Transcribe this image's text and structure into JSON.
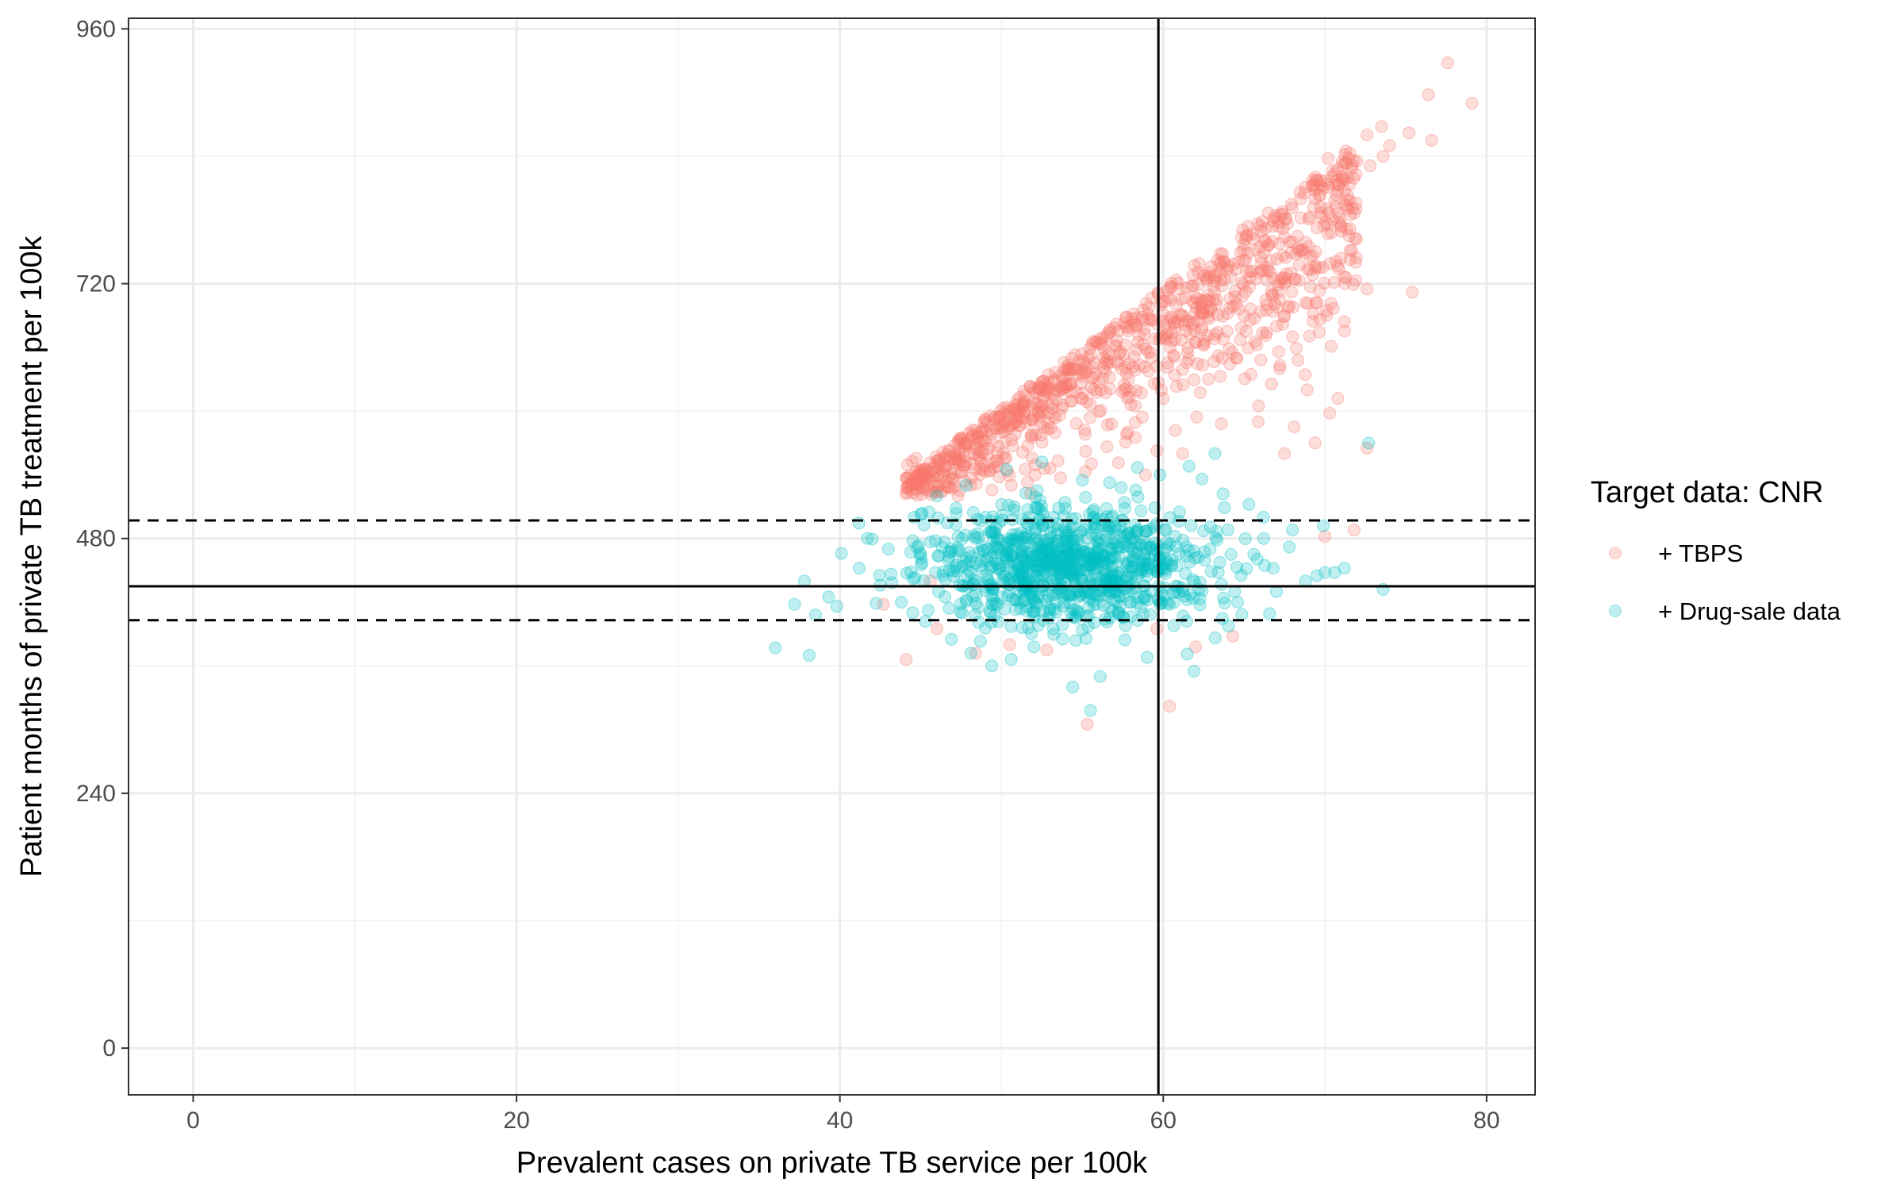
{
  "chart_data": {
    "type": "scatter",
    "xlabel": "Prevalent cases on private TB service per 100k",
    "ylabel": "Patient months of private TB treatment per 100k",
    "xlim": [
      -4,
      83
    ],
    "ylim": [
      -44,
      970
    ],
    "x_ticks": [
      0,
      20,
      40,
      60,
      80
    ],
    "y_ticks": [
      0,
      240,
      480,
      720,
      960
    ],
    "x_minor": [
      10,
      30,
      50,
      70
    ],
    "y_minor": [
      120,
      360,
      600,
      840
    ],
    "grid": true,
    "theme": "bw",
    "point_alpha": 0.25,
    "legend": {
      "title": "Target data: CNR",
      "position": "right",
      "entries": [
        {
          "label": "+ TBPS",
          "color": "#F8766D"
        },
        {
          "label": "+ Drug-sale data",
          "color": "#00BFC4"
        }
      ]
    },
    "reference_lines": {
      "vertical": {
        "x": 59.7,
        "style": "solid"
      },
      "horizontal": [
        {
          "y": 435,
          "style": "solid"
        },
        {
          "y": 497,
          "style": "dashed"
        },
        {
          "y": 403,
          "style": "dashed"
        }
      ]
    },
    "series": [
      {
        "name": "+ TBPS",
        "color": "#F8766D",
        "n_points": 1000,
        "x_range": [
          43,
          79
        ],
        "y_range": [
          305,
          925
        ],
        "trend_upper": [
          [
            47,
            570
          ],
          [
            52,
            620
          ],
          [
            58,
            690
          ],
          [
            62,
            745
          ],
          [
            66,
            790
          ],
          [
            70,
            820
          ],
          [
            72,
            855
          ],
          [
            76,
            900
          ],
          [
            78,
            925
          ]
        ],
        "points": [
          [
            77.6,
            928
          ],
          [
            79.1,
            890
          ],
          [
            76.4,
            898
          ],
          [
            73.5,
            868
          ],
          [
            72.6,
            860
          ],
          [
            75.2,
            862
          ],
          [
            76.6,
            855
          ],
          [
            74.0,
            850
          ],
          [
            71.3,
            845
          ],
          [
            73.6,
            840
          ],
          [
            70.2,
            838
          ],
          [
            72.8,
            831
          ],
          [
            69.8,
            812
          ],
          [
            71.2,
            808
          ],
          [
            75.4,
            712
          ],
          [
            72.6,
            715
          ],
          [
            70.1,
            690
          ],
          [
            69.5,
            702
          ],
          [
            70.8,
            612
          ],
          [
            68.9,
            620
          ],
          [
            70.3,
            598
          ],
          [
            68.1,
            585
          ],
          [
            69.4,
            570
          ],
          [
            67.5,
            560
          ],
          [
            72.6,
            565
          ],
          [
            71.8,
            488
          ],
          [
            70.0,
            482
          ],
          [
            60.4,
            322
          ],
          [
            55.3,
            305
          ],
          [
            59.6,
            395
          ],
          [
            52.8,
            375
          ],
          [
            48.4,
            372
          ],
          [
            44.1,
            366
          ],
          [
            62.0,
            378
          ],
          [
            64.3,
            388
          ],
          [
            50.5,
            380
          ],
          [
            46.0,
            395
          ],
          [
            42.7,
            418
          ],
          [
            45.6,
            440
          ],
          [
            47.3,
            520
          ],
          [
            48.8,
            545
          ],
          [
            50.1,
            560
          ],
          [
            51.9,
            578
          ],
          [
            53.6,
            596
          ],
          [
            55.0,
            612
          ],
          [
            56.7,
            632
          ],
          [
            58.2,
            651
          ],
          [
            59.5,
            668
          ],
          [
            60.7,
            684
          ],
          [
            62.4,
            704
          ],
          [
            63.8,
            724
          ],
          [
            65.1,
            742
          ],
          [
            66.3,
            760
          ],
          [
            67.4,
            772
          ],
          [
            68.5,
            782
          ],
          [
            69.3,
            792
          ],
          [
            58.9,
            540
          ],
          [
            61.2,
            560
          ],
          [
            63.6,
            588
          ],
          [
            65.9,
            605
          ],
          [
            67.2,
            640
          ],
          [
            68.0,
            670
          ],
          [
            64.5,
            650
          ],
          [
            62.8,
            630
          ],
          [
            60.0,
            612
          ],
          [
            57.8,
            580
          ],
          [
            55.2,
            562
          ],
          [
            53.0,
            546
          ],
          [
            50.6,
            530
          ],
          [
            66.4,
            700
          ],
          [
            67.9,
            730
          ],
          [
            65.0,
            690
          ],
          [
            63.2,
            672
          ],
          [
            61.5,
            655
          ],
          [
            69.0,
            755
          ],
          [
            70.4,
            768
          ],
          [
            71.0,
            775
          ],
          [
            68.2,
            748
          ],
          [
            66.8,
            725
          ],
          [
            64.9,
            708
          ]
        ]
      },
      {
        "name": "+ Drug-sale data",
        "color": "#00BFC4",
        "n_points": 1000,
        "x_range": [
          36,
          74
        ],
        "y_range": [
          330,
          570
        ],
        "points": [
          [
            72.7,
            570
          ],
          [
            73.6,
            432
          ],
          [
            70.0,
            448
          ],
          [
            69.5,
            445
          ],
          [
            68.8,
            440
          ],
          [
            69.9,
            492
          ],
          [
            67.8,
            472
          ],
          [
            66.2,
            500
          ],
          [
            65.3,
            512
          ],
          [
            63.7,
            522
          ],
          [
            62.4,
            536
          ],
          [
            61.0,
            505
          ],
          [
            60.2,
            476
          ],
          [
            59.1,
            460
          ],
          [
            58.4,
            445
          ],
          [
            57.0,
            430
          ],
          [
            55.9,
            418
          ],
          [
            54.6,
            405
          ],
          [
            53.2,
            395
          ],
          [
            52.0,
            378
          ],
          [
            50.6,
            366
          ],
          [
            49.4,
            360
          ],
          [
            48.1,
            372
          ],
          [
            46.9,
            385
          ],
          [
            45.3,
            402
          ],
          [
            43.8,
            420
          ],
          [
            42.5,
            436
          ],
          [
            41.2,
            452
          ],
          [
            40.1,
            466
          ],
          [
            39.3,
            425
          ],
          [
            38.5,
            408
          ],
          [
            37.8,
            440
          ],
          [
            37.2,
            418
          ],
          [
            36.0,
            377
          ],
          [
            38.1,
            370
          ],
          [
            44.5,
            410
          ],
          [
            47.2,
            455
          ],
          [
            49.8,
            470
          ],
          [
            51.4,
            480
          ],
          [
            53.9,
            490
          ],
          [
            55.7,
            500
          ],
          [
            57.6,
            514
          ],
          [
            59.8,
            540
          ],
          [
            61.6,
            548
          ],
          [
            63.2,
            560
          ],
          [
            54.4,
            340
          ],
          [
            55.5,
            318
          ],
          [
            61.9,
            355
          ],
          [
            59.0,
            368
          ],
          [
            56.1,
            350
          ],
          [
            44.6,
            500
          ],
          [
            46.0,
            520
          ],
          [
            47.8,
            530
          ],
          [
            50.3,
            545
          ],
          [
            52.5,
            552
          ],
          [
            48.5,
            498
          ],
          [
            50.0,
            512
          ],
          [
            52.2,
            525
          ],
          [
            55.0,
            535
          ],
          [
            57.4,
            528
          ],
          [
            66.8,
            452
          ],
          [
            64.6,
            420
          ],
          [
            62.9,
            470
          ],
          [
            60.8,
            430
          ],
          [
            58.6,
            415
          ],
          [
            56.9,
            440
          ],
          [
            54.1,
            468
          ],
          [
            51.8,
            455
          ],
          [
            49.2,
            440
          ],
          [
            46.5,
            425
          ],
          [
            43.0,
            470
          ],
          [
            41.7,
            480
          ],
          [
            45.0,
            465
          ],
          [
            64.0,
            488
          ],
          [
            67.0,
            430
          ],
          [
            68.0,
            488
          ],
          [
            70.6,
            448
          ],
          [
            71.2,
            452
          ],
          [
            65.6,
            465
          ],
          [
            63.4,
            448
          ]
        ]
      }
    ]
  }
}
